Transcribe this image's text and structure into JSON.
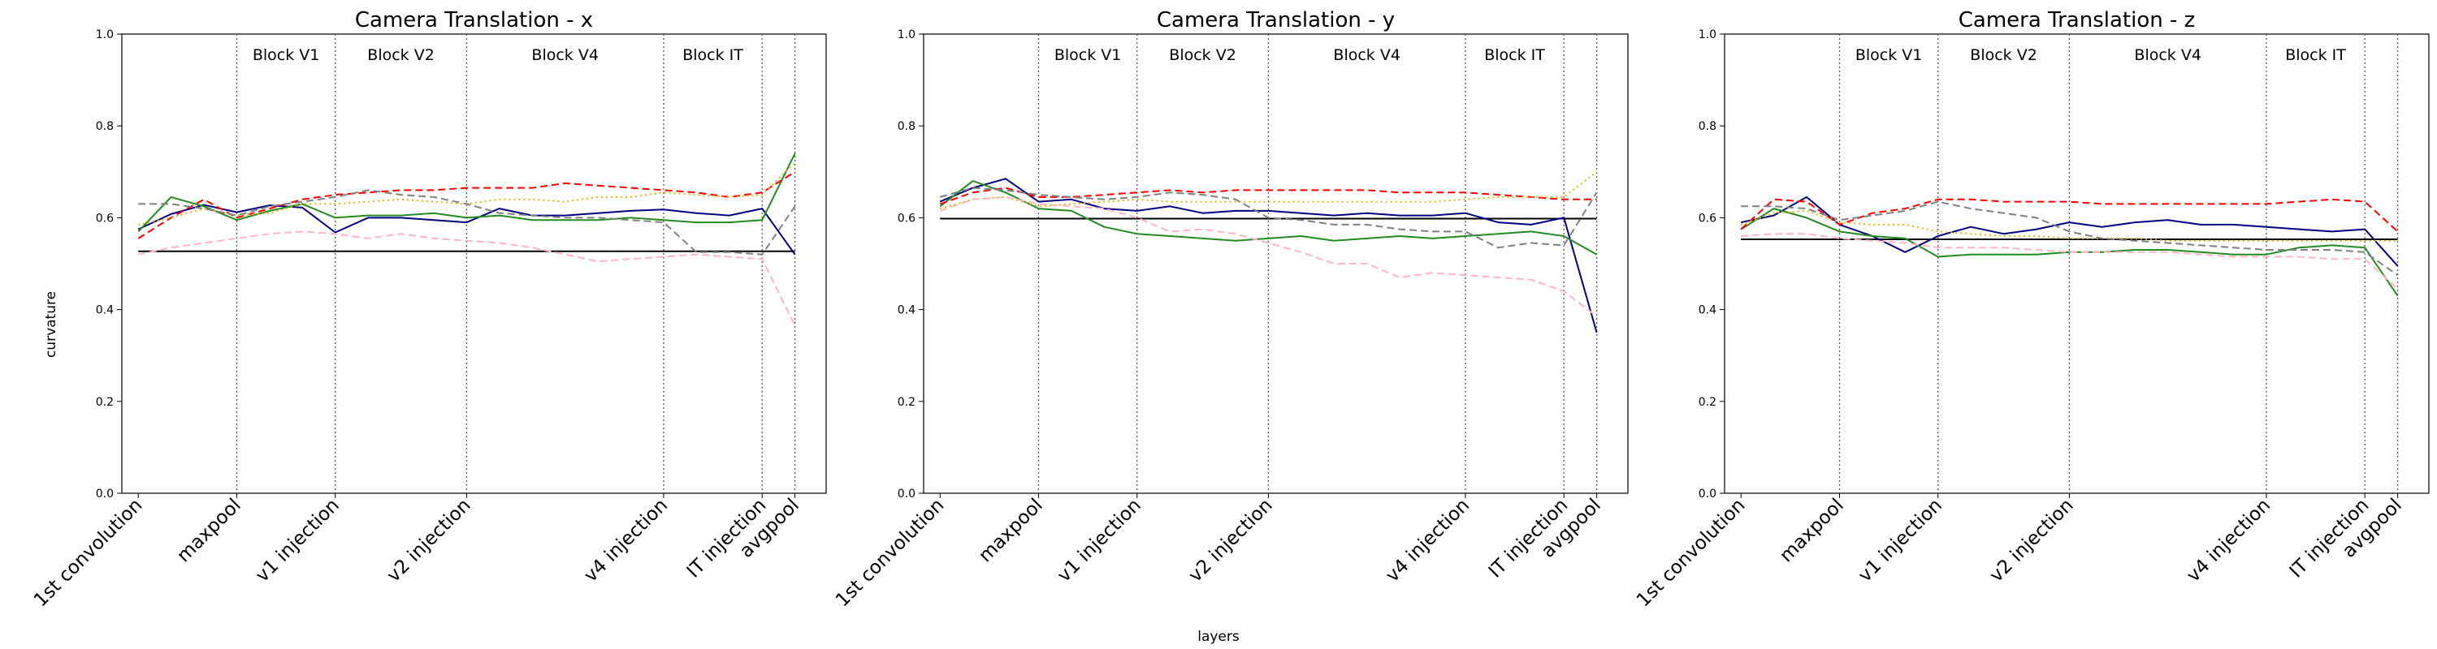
{
  "figure": {
    "ylabel": "curvature",
    "xlabel": "layers"
  },
  "chart_data": [
    {
      "type": "line",
      "title": "Camera Translation - x",
      "ylabel": "curvature",
      "ylim": [
        0.0,
        1.0
      ],
      "yticks": [
        "0.0",
        "0.2",
        "0.4",
        "0.6",
        "0.8",
        "1.0"
      ],
      "x_ticks": [
        {
          "label": "1st convolution",
          "x": 0
        },
        {
          "label": "maxpool",
          "x": 3
        },
        {
          "label": "v1 injection",
          "x": 6
        },
        {
          "label": "v2 injection",
          "x": 10
        },
        {
          "label": "v4 injection",
          "x": 16
        },
        {
          "label": "IT injection",
          "x": 19
        },
        {
          "label": "avgpool",
          "x": 20
        }
      ],
      "block_labels": [
        {
          "label": "Block V1",
          "x": 4.5
        },
        {
          "label": "Block V2",
          "x": 8
        },
        {
          "label": "Block V4",
          "x": 13
        },
        {
          "label": "Block IT",
          "x": 17.5
        }
      ],
      "vlines": [
        3,
        6,
        10,
        16,
        19,
        20
      ],
      "hline": 0.527,
      "series": [
        {
          "color": "#000080",
          "style": "solid",
          "values": [
            0.575,
            0.608,
            0.628,
            0.612,
            0.627,
            0.622,
            0.568,
            0.6,
            0.6,
            0.595,
            0.59,
            0.62,
            0.605,
            0.605,
            0.61,
            0.615,
            0.618,
            0.61,
            0.605,
            0.62,
            0.52
          ]
        },
        {
          "color": "#228b22",
          "style": "solid",
          "values": [
            0.57,
            0.645,
            0.625,
            0.595,
            0.615,
            0.63,
            0.6,
            0.605,
            0.605,
            0.61,
            0.6,
            0.605,
            0.595,
            0.595,
            0.595,
            0.6,
            0.595,
            0.59,
            0.59,
            0.595,
            0.74
          ]
        },
        {
          "color": "#ff0000",
          "style": "dashed",
          "values": [
            0.555,
            0.6,
            0.64,
            0.6,
            0.62,
            0.64,
            0.65,
            0.655,
            0.66,
            0.66,
            0.665,
            0.665,
            0.665,
            0.675,
            0.67,
            0.665,
            0.66,
            0.655,
            0.645,
            0.655,
            0.7
          ]
        },
        {
          "color": "#e8b400",
          "style": "dotted",
          "values": [
            0.585,
            0.6,
            0.62,
            0.605,
            0.61,
            0.63,
            0.63,
            0.635,
            0.64,
            0.635,
            0.63,
            0.64,
            0.64,
            0.635,
            0.645,
            0.645,
            0.655,
            0.65,
            0.645,
            0.65,
            0.72
          ]
        },
        {
          "color": "#808080",
          "style": "dashed",
          "values": [
            0.63,
            0.63,
            0.62,
            0.605,
            0.625,
            0.635,
            0.645,
            0.66,
            0.65,
            0.645,
            0.63,
            0.61,
            0.605,
            0.6,
            0.6,
            0.595,
            0.59,
            0.525,
            0.525,
            0.52,
            0.625
          ]
        },
        {
          "color": "#ffb6c1",
          "style": "dashed",
          "values": [
            0.52,
            0.535,
            0.545,
            0.555,
            0.565,
            0.57,
            0.565,
            0.555,
            0.565,
            0.555,
            0.55,
            0.545,
            0.535,
            0.52,
            0.505,
            0.51,
            0.515,
            0.52,
            0.515,
            0.51,
            0.365
          ]
        }
      ]
    },
    {
      "type": "line",
      "title": "Camera Translation - y",
      "ylabel": "curvature",
      "ylim": [
        0.0,
        1.0
      ],
      "yticks": [
        "0.0",
        "0.2",
        "0.4",
        "0.6",
        "0.8",
        "1.0"
      ],
      "x_ticks": [
        {
          "label": "1st convolution",
          "x": 0
        },
        {
          "label": "maxpool",
          "x": 3
        },
        {
          "label": "v1 injection",
          "x": 6
        },
        {
          "label": "v2 injection",
          "x": 10
        },
        {
          "label": "v4 injection",
          "x": 16
        },
        {
          "label": "IT injection",
          "x": 19
        },
        {
          "label": "avgpool",
          "x": 20
        }
      ],
      "block_labels": [
        {
          "label": "Block V1",
          "x": 4.5
        },
        {
          "label": "Block V2",
          "x": 8
        },
        {
          "label": "Block V4",
          "x": 13
        },
        {
          "label": "Block IT",
          "x": 17.5
        }
      ],
      "vlines": [
        3,
        6,
        10,
        16,
        19,
        20
      ],
      "hline": 0.598,
      "series": [
        {
          "color": "#000080",
          "style": "solid",
          "values": [
            0.635,
            0.665,
            0.685,
            0.635,
            0.64,
            0.62,
            0.615,
            0.625,
            0.61,
            0.615,
            0.615,
            0.61,
            0.605,
            0.61,
            0.605,
            0.605,
            0.61,
            0.59,
            0.585,
            0.6,
            0.35
          ]
        },
        {
          "color": "#228b22",
          "style": "solid",
          "values": [
            0.625,
            0.68,
            0.655,
            0.62,
            0.615,
            0.58,
            0.565,
            0.56,
            0.555,
            0.55,
            0.555,
            0.56,
            0.55,
            0.555,
            0.56,
            0.555,
            0.56,
            0.565,
            0.57,
            0.56,
            0.52
          ]
        },
        {
          "color": "#ff0000",
          "style": "dashed",
          "values": [
            0.63,
            0.655,
            0.665,
            0.645,
            0.645,
            0.65,
            0.655,
            0.66,
            0.655,
            0.66,
            0.66,
            0.66,
            0.66,
            0.66,
            0.655,
            0.655,
            0.655,
            0.65,
            0.645,
            0.64,
            0.64
          ]
        },
        {
          "color": "#e8b400",
          "style": "dotted",
          "values": [
            0.62,
            0.64,
            0.645,
            0.625,
            0.63,
            0.635,
            0.64,
            0.635,
            0.635,
            0.635,
            0.635,
            0.635,
            0.635,
            0.635,
            0.635,
            0.635,
            0.64,
            0.645,
            0.645,
            0.645,
            0.7
          ]
        },
        {
          "color": "#808080",
          "style": "dashed",
          "values": [
            0.645,
            0.665,
            0.66,
            0.65,
            0.645,
            0.64,
            0.645,
            0.655,
            0.65,
            0.64,
            0.6,
            0.595,
            0.585,
            0.585,
            0.575,
            0.57,
            0.57,
            0.535,
            0.545,
            0.54,
            0.655
          ]
        },
        {
          "color": "#ffb6c1",
          "style": "dashed",
          "values": [
            0.615,
            0.64,
            0.645,
            0.63,
            0.625,
            0.62,
            0.6,
            0.57,
            0.575,
            0.565,
            0.545,
            0.525,
            0.5,
            0.5,
            0.47,
            0.48,
            0.475,
            0.47,
            0.465,
            0.44,
            0.385
          ]
        }
      ]
    },
    {
      "type": "line",
      "title": "Camera Translation - z",
      "ylabel": "curvature",
      "ylim": [
        0.0,
        1.0
      ],
      "yticks": [
        "0.0",
        "0.2",
        "0.4",
        "0.6",
        "0.8",
        "1.0"
      ],
      "x_ticks": [
        {
          "label": "1st convolution",
          "x": 0
        },
        {
          "label": "maxpool",
          "x": 3
        },
        {
          "label": "v1 injection",
          "x": 6
        },
        {
          "label": "v2 injection",
          "x": 10
        },
        {
          "label": "v4 injection",
          "x": 16
        },
        {
          "label": "IT injection",
          "x": 19
        },
        {
          "label": "avgpool",
          "x": 20
        }
      ],
      "block_labels": [
        {
          "label": "Block V1",
          "x": 4.5
        },
        {
          "label": "Block V2",
          "x": 8
        },
        {
          "label": "Block V4",
          "x": 13
        },
        {
          "label": "Block IT",
          "x": 17.5
        }
      ],
      "vlines": [
        3,
        6,
        10,
        16,
        19,
        20
      ],
      "hline": 0.553,
      "series": [
        {
          "color": "#000080",
          "style": "solid",
          "values": [
            0.59,
            0.605,
            0.645,
            0.585,
            0.56,
            0.525,
            0.56,
            0.58,
            0.565,
            0.575,
            0.59,
            0.58,
            0.59,
            0.595,
            0.585,
            0.585,
            0.58,
            0.575,
            0.57,
            0.575,
            0.495
          ]
        },
        {
          "color": "#228b22",
          "style": "solid",
          "values": [
            0.575,
            0.62,
            0.6,
            0.57,
            0.56,
            0.555,
            0.515,
            0.52,
            0.52,
            0.52,
            0.525,
            0.525,
            0.53,
            0.53,
            0.525,
            0.52,
            0.52,
            0.535,
            0.54,
            0.535,
            0.43
          ]
        },
        {
          "color": "#ff0000",
          "style": "dashed",
          "values": [
            0.575,
            0.64,
            0.635,
            0.585,
            0.61,
            0.62,
            0.64,
            0.64,
            0.635,
            0.635,
            0.635,
            0.63,
            0.63,
            0.63,
            0.63,
            0.63,
            0.63,
            0.635,
            0.64,
            0.635,
            0.57
          ]
        },
        {
          "color": "#e8b400",
          "style": "dotted",
          "values": [
            0.585,
            0.61,
            0.615,
            0.59,
            0.585,
            0.585,
            0.57,
            0.565,
            0.56,
            0.56,
            0.555,
            0.555,
            0.555,
            0.55,
            0.55,
            0.55,
            0.55,
            0.55,
            0.55,
            0.55,
            0.55
          ]
        },
        {
          "color": "#808080",
          "style": "dashed",
          "values": [
            0.625,
            0.625,
            0.62,
            0.595,
            0.605,
            0.615,
            0.635,
            0.62,
            0.61,
            0.6,
            0.57,
            0.555,
            0.55,
            0.545,
            0.54,
            0.535,
            0.53,
            0.53,
            0.53,
            0.525,
            0.475
          ]
        },
        {
          "color": "#ffb6c1",
          "style": "dashed",
          "values": [
            0.56,
            0.565,
            0.565,
            0.555,
            0.55,
            0.545,
            0.535,
            0.535,
            0.535,
            0.53,
            0.525,
            0.525,
            0.525,
            0.525,
            0.52,
            0.515,
            0.515,
            0.515,
            0.51,
            0.51,
            0.445
          ]
        }
      ]
    }
  ]
}
